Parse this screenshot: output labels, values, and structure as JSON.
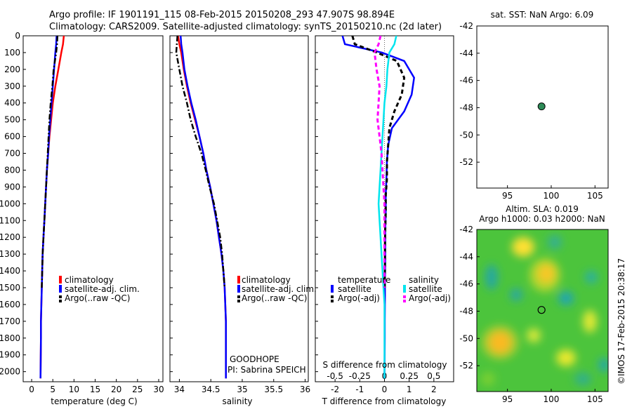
{
  "header": {
    "line1": "Argo profile: IF 1901191_115 08-Feb-2015 20150208_293 47.907S 98.894E",
    "line2": "Climatology: CARS2009. Satellite-adjusted climatology: synTS_20150210.nc (2d later)"
  },
  "colors": {
    "climatology": "#ff0000",
    "satellite": "#0000ff",
    "argo": "#000000",
    "salinity_satellite": "#00e5ee",
    "salinity_argo": "#ff00ff",
    "argo_marker": "#2e8b57"
  },
  "depth_axis": {
    "ticks": [
      "0",
      "100",
      "200",
      "300",
      "400",
      "500",
      "600",
      "700",
      "800",
      "900",
      "1000",
      "1100",
      "1200",
      "1300",
      "1400",
      "1500",
      "1600",
      "1700",
      "1800",
      "1900",
      "2000"
    ],
    "ylim": [
      0,
      2060
    ]
  },
  "temp_panel": {
    "xlabel": "temperature (deg C)",
    "ticks": [
      "0",
      "5",
      "10",
      "15",
      "20",
      "25",
      "30"
    ],
    "legend": [
      "climatology",
      "satellite-adj. clim.",
      "Argo(..raw -QC)"
    ]
  },
  "sal_panel": {
    "xlabel": "salinity",
    "ticks": [
      "34",
      "34.5",
      "35",
      "35.5",
      "36"
    ],
    "legend": [
      "climatology",
      "satellite-adj. clim.",
      "Argo(..raw -QC)"
    ],
    "note1": "GOODHOPE",
    "note2": "PI: Sabrina SPEICH"
  },
  "diff_panel": {
    "xlabel": "T difference from climatology",
    "s_label": "S difference from climatology",
    "t_ticks": [
      "-2",
      "-1",
      "0",
      "1",
      "2"
    ],
    "s_ticks": [
      "-0.5",
      "-0.25",
      "0",
      "0.25",
      "0.5"
    ],
    "legend_t_title": "temperature",
    "legend_s_title": "salinity",
    "legend_t": [
      "satellite",
      "Argo(-adj)"
    ],
    "legend_s": [
      "satellite",
      "Argo(-adj)"
    ]
  },
  "sst_map": {
    "title": "sat. SST: NaN Argo: 6.09",
    "y_ticks": [
      "-42",
      "-44",
      "-46",
      "-48",
      "-50",
      "-52"
    ],
    "x_ticks": [
      "95",
      "100",
      "105"
    ]
  },
  "sla_map": {
    "title1": "Altim. SLA: 0.019",
    "title2": "Argo h1000: 0.03 h2000: NaN",
    "y_ticks": [
      "-42",
      "-44",
      "-46",
      "-48",
      "-50",
      "-52"
    ],
    "x_ticks": [
      "95",
      "100",
      "105"
    ]
  },
  "footer": "©IMOS 17-Feb-2015 20:38:17",
  "chart_data": [
    {
      "type": "line",
      "xlabel": "temperature (deg C)",
      "ylabel": "",
      "xlim": [
        -2,
        31
      ],
      "ylim": [
        0,
        2060
      ],
      "series": [
        {
          "name": "climatology",
          "x": [
            7.6,
            7.4,
            7.0,
            6.3,
            5.6,
            5.0,
            4.6,
            4.2,
            3.9,
            3.6,
            3.4,
            3.2,
            3.0,
            2.8,
            2.6,
            2.5,
            2.4,
            2.3,
            2.2,
            2.2,
            2.1
          ],
          "y": [
            0,
            50,
            100,
            200,
            300,
            400,
            500,
            600,
            700,
            800,
            900,
            1000,
            1100,
            1200,
            1300,
            1400,
            1500,
            1600,
            1700,
            1800,
            2040
          ]
        },
        {
          "name": "satellite-adj. clim.",
          "x": [
            5.9,
            5.8,
            5.6,
            5.3,
            5.0,
            4.7,
            4.4,
            4.1,
            3.9,
            3.6,
            3.4,
            3.2,
            3.0,
            2.8,
            2.6,
            2.5,
            2.4,
            2.3,
            2.2,
            2.2,
            2.1
          ],
          "y": [
            0,
            50,
            100,
            200,
            300,
            400,
            500,
            600,
            700,
            800,
            900,
            1000,
            1100,
            1200,
            1300,
            1400,
            1500,
            1600,
            1700,
            1800,
            2040
          ]
        },
        {
          "name": "Argo(..raw -QC)",
          "x": [
            6.1,
            6.0,
            5.8,
            5.2,
            4.9,
            4.5,
            4.2,
            4.0,
            3.8,
            3.6,
            3.4,
            3.2,
            3.0,
            2.8,
            2.6,
            2.5,
            2.4
          ],
          "y": [
            0,
            50,
            100,
            200,
            300,
            400,
            500,
            600,
            700,
            800,
            900,
            1000,
            1100,
            1200,
            1300,
            1400,
            1500
          ]
        }
      ]
    },
    {
      "type": "line",
      "xlabel": "salinity",
      "ylabel": "",
      "xlim": [
        33.85,
        36.05
      ],
      "ylim": [
        0,
        2060
      ],
      "series": [
        {
          "name": "climatology",
          "x": [
            33.98,
            34.0,
            34.03,
            34.07,
            34.12,
            34.18,
            34.25,
            34.32,
            34.38,
            34.43,
            34.49,
            34.54,
            34.59,
            34.63,
            34.67,
            34.7,
            34.72,
            34.73,
            34.74,
            34.74,
            34.74
          ],
          "y": [
            0,
            50,
            100,
            200,
            300,
            400,
            500,
            600,
            700,
            800,
            900,
            1000,
            1100,
            1200,
            1300,
            1400,
            1500,
            1600,
            1700,
            1800,
            2040
          ]
        },
        {
          "name": "satellite-adj. clim.",
          "x": [
            34.02,
            34.03,
            34.05,
            34.08,
            34.13,
            34.19,
            34.26,
            34.32,
            34.38,
            34.43,
            34.49,
            34.54,
            34.59,
            34.63,
            34.67,
            34.7,
            34.72,
            34.73,
            34.74,
            34.74,
            34.74
          ],
          "y": [
            0,
            50,
            100,
            200,
            300,
            400,
            500,
            600,
            700,
            800,
            900,
            1000,
            1100,
            1200,
            1300,
            1400,
            1500,
            1600,
            1700,
            1800,
            2040
          ]
        },
        {
          "name": "Argo(..raw -QC)",
          "x": [
            33.97,
            33.96,
            33.95,
            34.0,
            34.05,
            34.12,
            34.18,
            34.26,
            34.35,
            34.42,
            34.48,
            34.55,
            34.6,
            34.65,
            34.68,
            34.7,
            34.72
          ],
          "y": [
            0,
            50,
            100,
            200,
            300,
            400,
            500,
            600,
            700,
            800,
            900,
            1000,
            1100,
            1200,
            1300,
            1400,
            1500
          ]
        }
      ]
    },
    {
      "type": "line",
      "xlabel": "T difference from climatology",
      "ylabel": "",
      "xlim": [
        -2.8,
        2.8
      ],
      "ylim": [
        0,
        2060
      ],
      "series": [
        {
          "name": "temperature satellite",
          "x": [
            -1.7,
            -1.6,
            -0.1,
            0.8,
            1.2,
            1.1,
            0.8,
            0.3,
            0.15,
            0.1,
            0.08,
            0.05,
            0.05,
            0.03,
            0.03,
            0.03,
            0.02,
            0.02,
            0.01,
            0.01,
            0.0
          ],
          "y": [
            0,
            50,
            100,
            150,
            250,
            350,
            450,
            550,
            650,
            750,
            850,
            950,
            1050,
            1150,
            1250,
            1350,
            1450,
            1550,
            1700,
            1800,
            2040
          ]
        },
        {
          "name": "temperature Argo(-adj)",
          "x": [
            -1.3,
            -1.2,
            -0.3,
            0.5,
            0.8,
            0.7,
            0.4,
            0.2,
            0.15,
            0.1,
            0.1,
            0.05,
            0.05,
            0.03,
            0.02,
            0.02,
            0.01
          ],
          "y": [
            0,
            50,
            100,
            150,
            250,
            350,
            450,
            550,
            650,
            750,
            850,
            950,
            1050,
            1150,
            1250,
            1350,
            1500
          ]
        },
        {
          "name": "salinity satellite",
          "x": [
            0.12,
            0.1,
            0.05,
            0.03,
            0.02,
            0.0,
            -0.01,
            -0.02,
            -0.03,
            -0.04,
            -0.05,
            -0.06,
            -0.05,
            -0.04,
            -0.03,
            -0.02,
            -0.01,
            0.0,
            0.0,
            0.0
          ],
          "y": [
            0,
            50,
            100,
            200,
            300,
            400,
            500,
            600,
            700,
            800,
            900,
            1000,
            1100,
            1200,
            1300,
            1400,
            1500,
            1600,
            1800,
            2040
          ]
        },
        {
          "name": "salinity Argo(-adj)",
          "x": [
            -0.04,
            -0.06,
            -0.1,
            -0.08,
            -0.05,
            -0.06,
            -0.07,
            -0.05,
            -0.03,
            -0.02,
            -0.01,
            0.0,
            0.0,
            0.0,
            0.0,
            0.0,
            0.0
          ],
          "y": [
            0,
            50,
            100,
            200,
            300,
            400,
            500,
            600,
            700,
            800,
            900,
            1000,
            1100,
            1200,
            1300,
            1400,
            1500
          ]
        }
      ]
    },
    {
      "type": "scatter",
      "title": "sat. SST: NaN Argo: 6.09",
      "xlim": [
        91.5,
        106.5
      ],
      "ylim": [
        -53.9,
        -42
      ],
      "x": [
        98.894
      ],
      "y": [
        -47.907
      ]
    },
    {
      "type": "heatmap",
      "title": "Altim. SLA: 0.019",
      "xlim": [
        91.5,
        106.5
      ],
      "ylim": [
        -53.9,
        -42
      ],
      "marker": {
        "x": 98.894,
        "y": -47.907
      }
    }
  ]
}
